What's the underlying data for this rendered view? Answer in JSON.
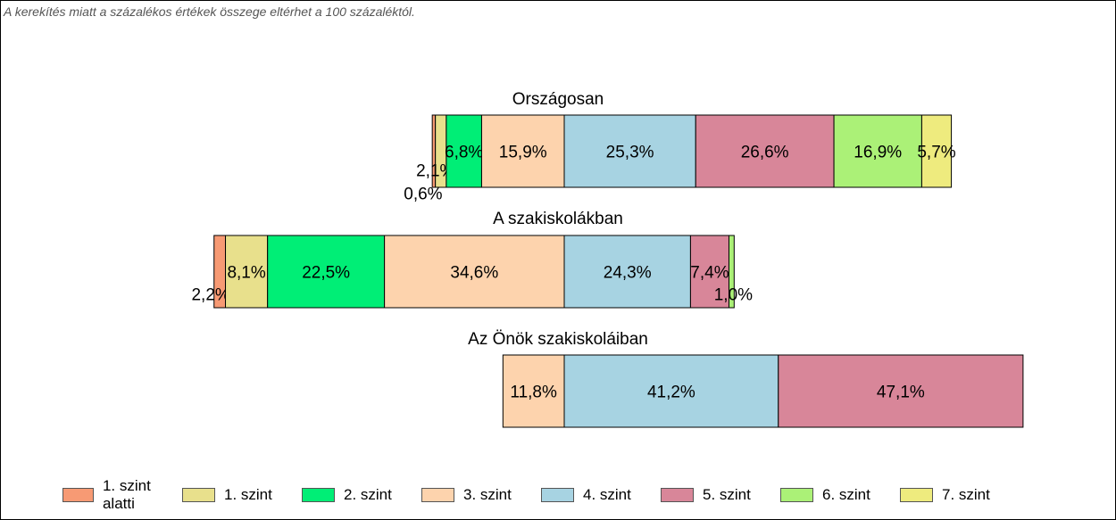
{
  "note": "A kerekítés miatt a  százalékos értékek összege eltérhet a 100 százaléktól.",
  "chart_data": {
    "type": "bar",
    "orientation": "horizontal",
    "stacked": true,
    "legend_position": "bottom",
    "series": [
      {
        "name": "1. szint alatti",
        "color": "#f79a74"
      },
      {
        "name": "1. szint",
        "color": "#e8e08c"
      },
      {
        "name": "2. szint",
        "color": "#00ee76"
      },
      {
        "name": "3. szint",
        "color": "#fdd3ad"
      },
      {
        "name": "4. szint",
        "color": "#a7d3e2"
      },
      {
        "name": "5. szint",
        "color": "#d88699"
      },
      {
        "name": "6. szint",
        "color": "#abf177"
      },
      {
        "name": "7. szint",
        "color": "#eeeb7e"
      }
    ],
    "groups": [
      {
        "title": "Országosan",
        "values": [
          0.6,
          2.1,
          6.8,
          15.9,
          25.3,
          26.6,
          16.9,
          5.7
        ],
        "labels": [
          "0,6%",
          "2,1%",
          "6,8%",
          "15,9%",
          "25,3%",
          "26,6%",
          "16,9%",
          "5,7%"
        ]
      },
      {
        "title": "A szakiskolákban",
        "values": [
          2.2,
          8.1,
          22.5,
          34.6,
          24.3,
          7.4,
          1.0,
          0
        ],
        "labels": [
          "2,2%",
          "8,1%",
          "22,5%",
          "34,6%",
          "24,3%",
          "7,4%",
          "1,0%",
          ""
        ]
      },
      {
        "title": "Az Önök szakiskoláiban",
        "values": [
          0,
          0,
          0,
          11.8,
          41.2,
          47.1,
          0,
          0
        ],
        "labels": [
          "",
          "",
          "",
          "11,8%",
          "41,2%",
          "47,1%",
          "",
          ""
        ]
      }
    ]
  }
}
